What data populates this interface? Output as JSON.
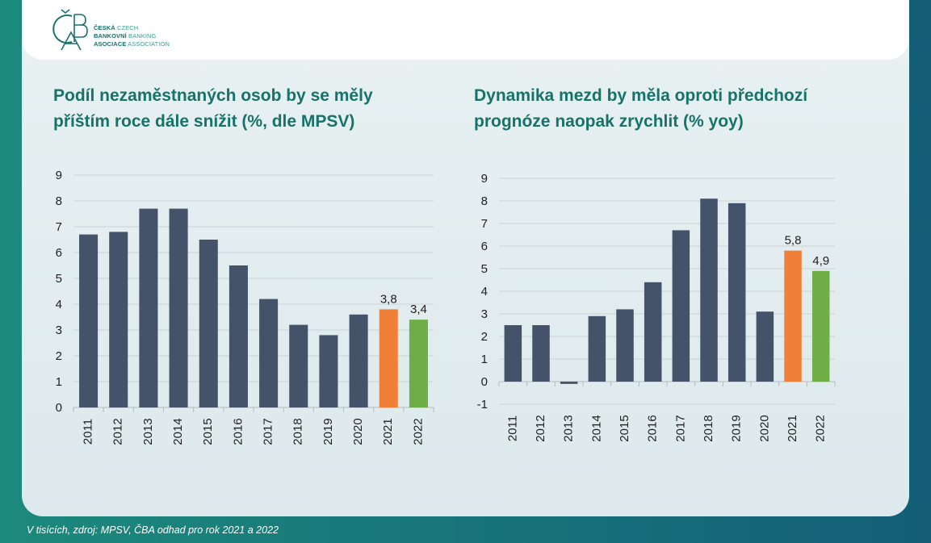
{
  "colors": {
    "bar_default": "#44526a",
    "bar_2021": "#f07f38",
    "bar_2022": "#6fad46",
    "title": "#17726a"
  },
  "logo": {
    "mark": "ČBA",
    "lines": [
      {
        "bold": "ČESKÁ",
        "light": "CZECH"
      },
      {
        "bold": "BANKOVNÍ",
        "light": "BANKING"
      },
      {
        "bold": "ASOCIACE",
        "light": "ASSOCIATION"
      }
    ]
  },
  "footnote": "V tisících, zdroj: MPSV, ČBA odhad pro rok 2021 a 2022",
  "chart_data": [
    {
      "type": "bar",
      "title": "Podíl nezaměstnaných osob by se měly\npříštím roce dále snížit (%, dle MPSV)",
      "categories": [
        "2011",
        "2012",
        "2013",
        "2014",
        "2015",
        "2016",
        "2017",
        "2018",
        "2019",
        "2020",
        "2021",
        "2022"
      ],
      "values": [
        6.7,
        6.8,
        7.7,
        7.7,
        6.5,
        5.5,
        4.2,
        3.2,
        2.8,
        3.6,
        3.8,
        3.4
      ],
      "data_labels": {
        "2021": "3,8",
        "2022": "3,4"
      },
      "ylim": [
        0,
        9
      ],
      "yticks": [
        "0",
        "1",
        "2",
        "3",
        "4",
        "5",
        "6",
        "7",
        "8",
        "9"
      ],
      "grid": true
    },
    {
      "type": "bar",
      "title": "Dynamika mezd by měla oproti předchozí\nprognóze naopak zrychlit (% yoy)",
      "categories": [
        "2011",
        "2012",
        "2013",
        "2014",
        "2015",
        "2016",
        "2017",
        "2018",
        "2019",
        "2020",
        "2021",
        "2022"
      ],
      "values": [
        2.5,
        2.5,
        -0.1,
        2.9,
        3.2,
        4.4,
        6.7,
        8.1,
        7.9,
        3.1,
        5.8,
        4.9
      ],
      "data_labels": {
        "2021": "5,8",
        "2022": "4,9"
      },
      "ylim": [
        -1,
        9
      ],
      "yticks": [
        "-1",
        "0",
        "1",
        "2",
        "3",
        "4",
        "5",
        "6",
        "7",
        "8",
        "9"
      ],
      "grid": true
    }
  ]
}
